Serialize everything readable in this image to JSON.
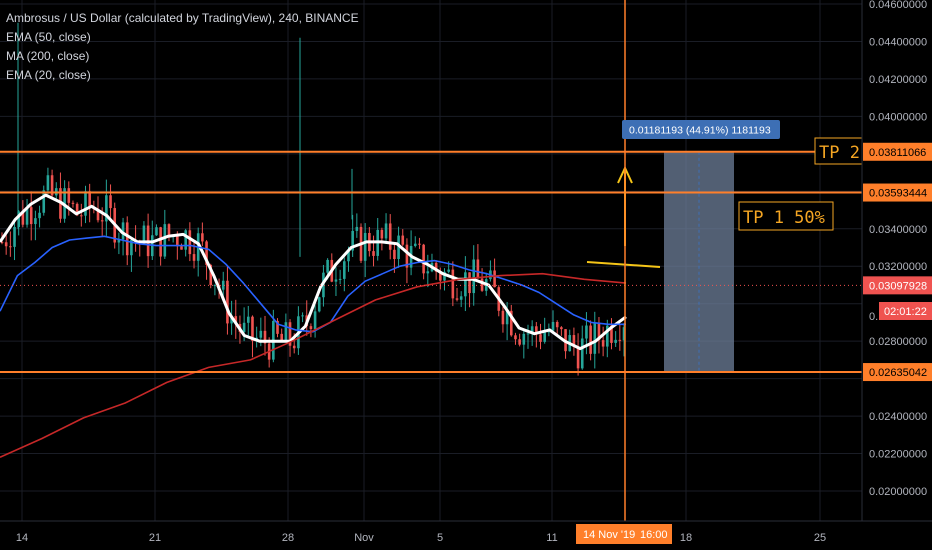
{
  "chart_data": {
    "type": "line",
    "title": "Ambrosus / US Dollar (calculated by TradingView), 240, BINANCE",
    "indicators": [
      "EMA (50, close)",
      "MA (200, close)",
      "EMA (20, close)"
    ],
    "y_ticks": [
      "0.04600000",
      "0.04400000",
      "0.04200000",
      "0.04000000",
      "0.03400000",
      "0.03200000",
      "0.02800000",
      "0.02400000",
      "0.02200000",
      "0.02000000"
    ],
    "x_ticks": [
      "14",
      "21",
      "28",
      "Nov",
      "5",
      "11",
      "18",
      "25"
    ],
    "ylim": [
      0.0184,
      0.0462
    ],
    "price_lines": [
      {
        "label": "0.03811066",
        "value": 0.03811066,
        "color": "#ff7f2a"
      },
      {
        "label": "0.03593444",
        "value": 0.03593444,
        "color": "#ff7f2a"
      },
      {
        "label": "0.02635042",
        "value": 0.02635042,
        "color": "#ff7f2a"
      }
    ],
    "current_price": {
      "label": "0.03097928",
      "value": 0.03097928,
      "color": "#ef5350"
    },
    "countdown": "02:01:22",
    "countdown_partial": "0.",
    "crosshair_time": "14 Nov '19",
    "crosshair_hour": "16:00",
    "measure_label": "0.01181193 (44.91%) 1181193",
    "annotations": [
      "TP 2",
      "TP 1 50%"
    ],
    "series": [
      {
        "name": "EMA (20, close)",
        "color": "#ffffff",
        "values": [
          0.0333,
          0.0345,
          0.0353,
          0.0358,
          0.0354,
          0.0348,
          0.0352,
          0.0347,
          0.0338,
          0.0333,
          0.0333,
          0.0336,
          0.0337,
          0.0332,
          0.0315,
          0.0295,
          0.0283,
          0.028,
          0.028,
          0.028,
          0.0288,
          0.0309,
          0.0321,
          0.033,
          0.0333,
          0.0333,
          0.0332,
          0.0325,
          0.0321,
          0.0316,
          0.0313,
          0.0313,
          0.031,
          0.0299,
          0.0287,
          0.0284,
          0.0286,
          0.028,
          0.0276,
          0.028,
          0.0287,
          0.0293
        ]
      },
      {
        "name": "EMA (50, close)",
        "color": "#2962ff",
        "values": [
          0.0296,
          0.0315,
          0.0322,
          0.033,
          0.0334,
          0.0335,
          0.0336,
          0.0334,
          0.0332,
          0.0331,
          0.0331,
          0.0331,
          0.0329,
          0.0321,
          0.0311,
          0.03,
          0.0289,
          0.0286,
          0.0285,
          0.029,
          0.0304,
          0.0312,
          0.0316,
          0.032,
          0.0322,
          0.0323,
          0.0321,
          0.0318,
          0.0316,
          0.0313,
          0.031,
          0.0306,
          0.03,
          0.0294,
          0.029,
          0.0289,
          0.0289
        ]
      },
      {
        "name": "MA (200, close)",
        "color": "#c62828",
        "values": [
          0.0218,
          0.0228,
          0.0239,
          0.0247,
          0.0258,
          0.0266,
          0.027,
          0.028,
          0.0291,
          0.0302,
          0.0309,
          0.0313,
          0.0315,
          0.0316,
          0.0313,
          0.0311
        ]
      }
    ]
  }
}
